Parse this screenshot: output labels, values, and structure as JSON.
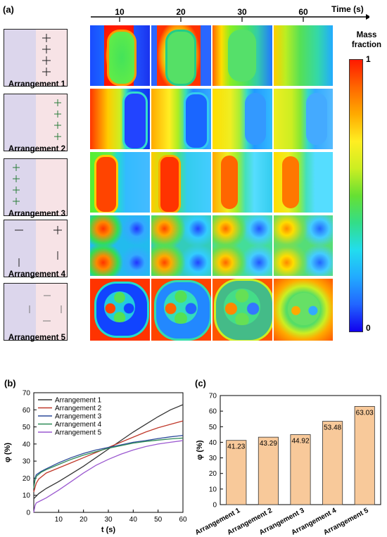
{
  "figure": {
    "panel_a_label": "(a)",
    "panel_b_label": "(b)",
    "panel_c_label": "(c)",
    "time_axis_label": "Time (s)",
    "times": [
      "10",
      "20",
      "30",
      "60"
    ],
    "arrangements": [
      "Arrangement 1",
      "Arrangement 2",
      "Arrangement 3",
      "Arrangement 4",
      "Arrangement 5"
    ],
    "colorbar": {
      "title_line1": "Mass",
      "title_line2": "fraction",
      "max_label": "1",
      "min_label": "0"
    }
  },
  "chart_data": [
    {
      "type": "line",
      "xlabel": "t (s)",
      "ylabel": "φ (%)",
      "xlim": [
        0,
        60
      ],
      "ylim": [
        0,
        70
      ],
      "xticks": [
        10,
        20,
        30,
        40,
        50,
        60
      ],
      "yticks": [
        0,
        10,
        20,
        30,
        40,
        50,
        60,
        70
      ],
      "legend_position": "top-left",
      "grid": false,
      "series": [
        {
          "name": "Arrangement 1",
          "color": "#333333",
          "points": [
            [
              0,
              8
            ],
            [
              2,
              11
            ],
            [
              5,
              14
            ],
            [
              10,
              18
            ],
            [
              15,
              22.5
            ],
            [
              20,
              27
            ],
            [
              25,
              32
            ],
            [
              30,
              37
            ],
            [
              35,
              42
            ],
            [
              40,
              47
            ],
            [
              45,
              51.5
            ],
            [
              50,
              56
            ],
            [
              55,
              60
            ],
            [
              60,
              63
            ]
          ]
        },
        {
          "name": "Arrangement 2",
          "color": "#c0392b",
          "points": [
            [
              0,
              12
            ],
            [
              1,
              17
            ],
            [
              2,
              19.5
            ],
            [
              5,
              23
            ],
            [
              10,
              26
            ],
            [
              15,
              29
            ],
            [
              20,
              32
            ],
            [
              25,
              35
            ],
            [
              30,
              38
            ],
            [
              35,
              41
            ],
            [
              40,
              44
            ],
            [
              45,
              47
            ],
            [
              50,
              49.5
            ],
            [
              55,
              51.5
            ],
            [
              60,
              53.5
            ]
          ]
        },
        {
          "name": "Arrangement 3",
          "color": "#2c4a9a",
          "points": [
            [
              0,
              14
            ],
            [
              0.5,
              20
            ],
            [
              1,
              22
            ],
            [
              3,
              24
            ],
            [
              5,
              25.5
            ],
            [
              10,
              29
            ],
            [
              15,
              32
            ],
            [
              20,
              34.5
            ],
            [
              25,
              36.5
            ],
            [
              30,
              38
            ],
            [
              35,
              39.5
            ],
            [
              40,
              41
            ],
            [
              45,
              42
            ],
            [
              50,
              43.2
            ],
            [
              55,
              44.2
            ],
            [
              60,
              45
            ]
          ]
        },
        {
          "name": "Arrangement 4",
          "color": "#2e8b57",
          "points": [
            [
              0,
              14
            ],
            [
              0.5,
              19
            ],
            [
              1,
              21
            ],
            [
              3,
              23.5
            ],
            [
              5,
              25
            ],
            [
              10,
              28
            ],
            [
              15,
              31
            ],
            [
              20,
              33.5
            ],
            [
              25,
              35.5
            ],
            [
              30,
              37.5
            ],
            [
              35,
              39
            ],
            [
              40,
              40.5
            ],
            [
              45,
              41.5
            ],
            [
              50,
              42.3
            ],
            [
              55,
              43
            ],
            [
              60,
              43.5
            ]
          ]
        },
        {
          "name": "Arrangement 5",
          "color": "#9b59d0",
          "points": [
            [
              0,
              0
            ],
            [
              0.5,
              4
            ],
            [
              1,
              5.5
            ],
            [
              3,
              7
            ],
            [
              5,
              8.5
            ],
            [
              10,
              13
            ],
            [
              15,
              18
            ],
            [
              20,
              23
            ],
            [
              25,
              27.5
            ],
            [
              30,
              31
            ],
            [
              35,
              34
            ],
            [
              40,
              36.5
            ],
            [
              45,
              38.5
            ],
            [
              50,
              40
            ],
            [
              55,
              41
            ],
            [
              60,
              42
            ]
          ]
        }
      ]
    },
    {
      "type": "bar",
      "ylabel": "φ (%)",
      "ylim": [
        0,
        70
      ],
      "yticks": [
        0,
        10,
        20,
        30,
        40,
        50,
        60,
        70
      ],
      "categories": [
        "Arrangement 1",
        "Arrangement 2",
        "Arrangement 3",
        "Arrangement 4",
        "Arrangement 5"
      ],
      "values": [
        41.23,
        43.29,
        44.92,
        53.48,
        63.03
      ],
      "value_labels": [
        "41.23",
        "43.29",
        "44.92",
        "53.48",
        "63.03"
      ],
      "bar_color": "#f8c99a"
    }
  ]
}
